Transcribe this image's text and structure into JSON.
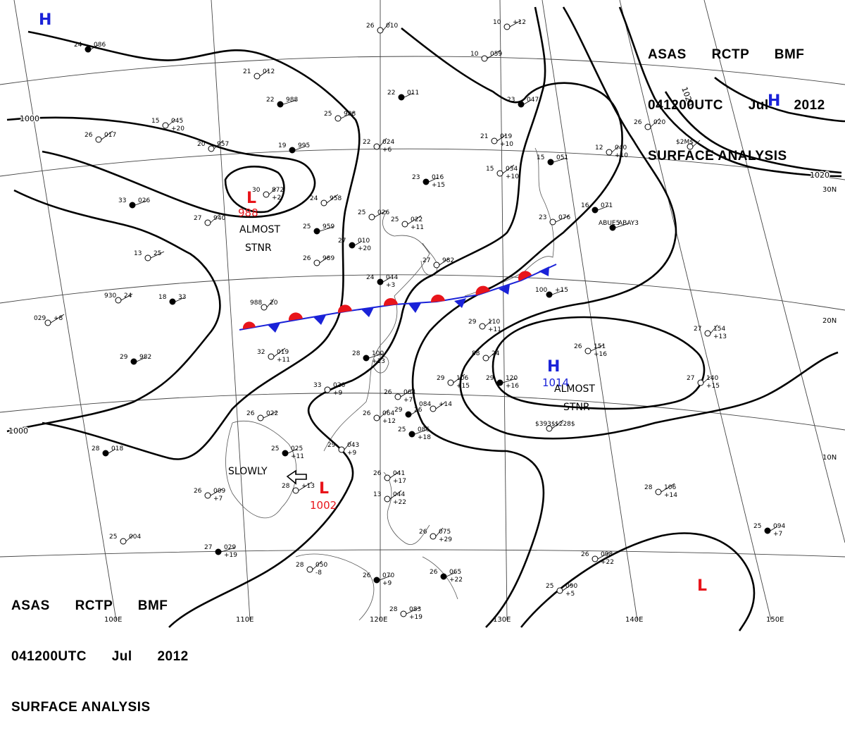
{
  "chart_header": {
    "line1": [
      "ASAS",
      "RCTP",
      "BMF"
    ],
    "line2": [
      "041200UTC",
      "Jul",
      "2012"
    ],
    "line3": "SURFACE ANALYSIS"
  },
  "colors": {
    "high": "#1a22d8",
    "low": "#e8151b",
    "isobar": "#000000",
    "grid": "#333333"
  },
  "grid_labels": {
    "longitude": [
      "100E",
      "110E",
      "120E",
      "130E",
      "140E",
      "150E"
    ],
    "latitude": [
      "30N",
      "20N",
      "10N"
    ]
  },
  "isobar_labels": [
    "1000",
    "1020",
    "1020",
    "1000"
  ],
  "pressure_centers": [
    {
      "type": "H",
      "value": ""
    },
    {
      "type": "H",
      "value": ""
    },
    {
      "type": "L",
      "value": "988"
    },
    {
      "type": "H",
      "value": "1014"
    },
    {
      "type": "L",
      "value": "1002"
    },
    {
      "type": "L",
      "value": ""
    }
  ],
  "annotations": [
    "ALMOST",
    "STNR",
    "ALMOST",
    "STNR",
    "SLOWLY"
  ],
  "station_texts": [
    "24",
    "086",
    "21",
    "012",
    "26",
    "017",
    "22",
    "988",
    "15",
    "045",
    "+20",
    "20",
    "957",
    "19",
    "995",
    "25",
    "988",
    "26",
    "010",
    "22",
    "011",
    "10",
    "+12",
    "10",
    "059",
    "23",
    "047",
    "21",
    "019",
    "+10",
    "15",
    "034",
    "+10",
    "15",
    "051",
    "12",
    "040",
    "+10",
    "26",
    "020",
    "16",
    "071",
    "23",
    "076",
    "22",
    "024",
    "+6",
    "23",
    "016",
    "+15",
    "25",
    "026",
    "25",
    "022",
    "+11",
    "27",
    "010",
    "+20",
    "26",
    "989",
    "24",
    "958",
    "25",
    "959",
    "30",
    "872",
    "+2",
    "27",
    "940",
    "33",
    "026",
    "13",
    "25",
    "988",
    "20",
    "18",
    "33",
    "930",
    "24",
    "029",
    "+8",
    "24",
    "044",
    "+3",
    "27",
    "982",
    "32",
    "019",
    "+11",
    "28",
    "100",
    "+13",
    "29",
    "110",
    "+11",
    "88",
    "24",
    "100",
    "+15",
    "26",
    "151",
    "+16",
    "27",
    "154",
    "+13",
    "29",
    "982",
    "33",
    "026",
    "+9",
    "26",
    "064",
    "+7",
    "29",
    "26",
    "084",
    "+14",
    "29",
    "106",
    "+15",
    "29",
    "120",
    "+16",
    "27",
    "140",
    "+15",
    "26",
    "064",
    "+12",
    "25",
    "086",
    "+18",
    "26",
    "022",
    "29",
    "043",
    "+9",
    "25",
    "025",
    "+11",
    "26",
    "009",
    "+7",
    "28",
    "+13",
    "28",
    "018",
    "26",
    "041",
    "+17",
    "13",
    "044",
    "+22",
    "27",
    "029",
    "+19",
    "25",
    "004",
    "28",
    "050",
    "-8",
    "26",
    "070",
    "+9",
    "28",
    "083",
    "+19",
    "26",
    "075",
    "+29",
    "26",
    "065",
    "+22",
    "26",
    "098",
    "+22",
    "28",
    "106",
    "+14",
    "25",
    "094",
    "+7",
    "25",
    "090",
    "+5",
    "$393$",
    "$228$",
    "ABUE5",
    "ABAY3",
    "$2M$"
  ]
}
